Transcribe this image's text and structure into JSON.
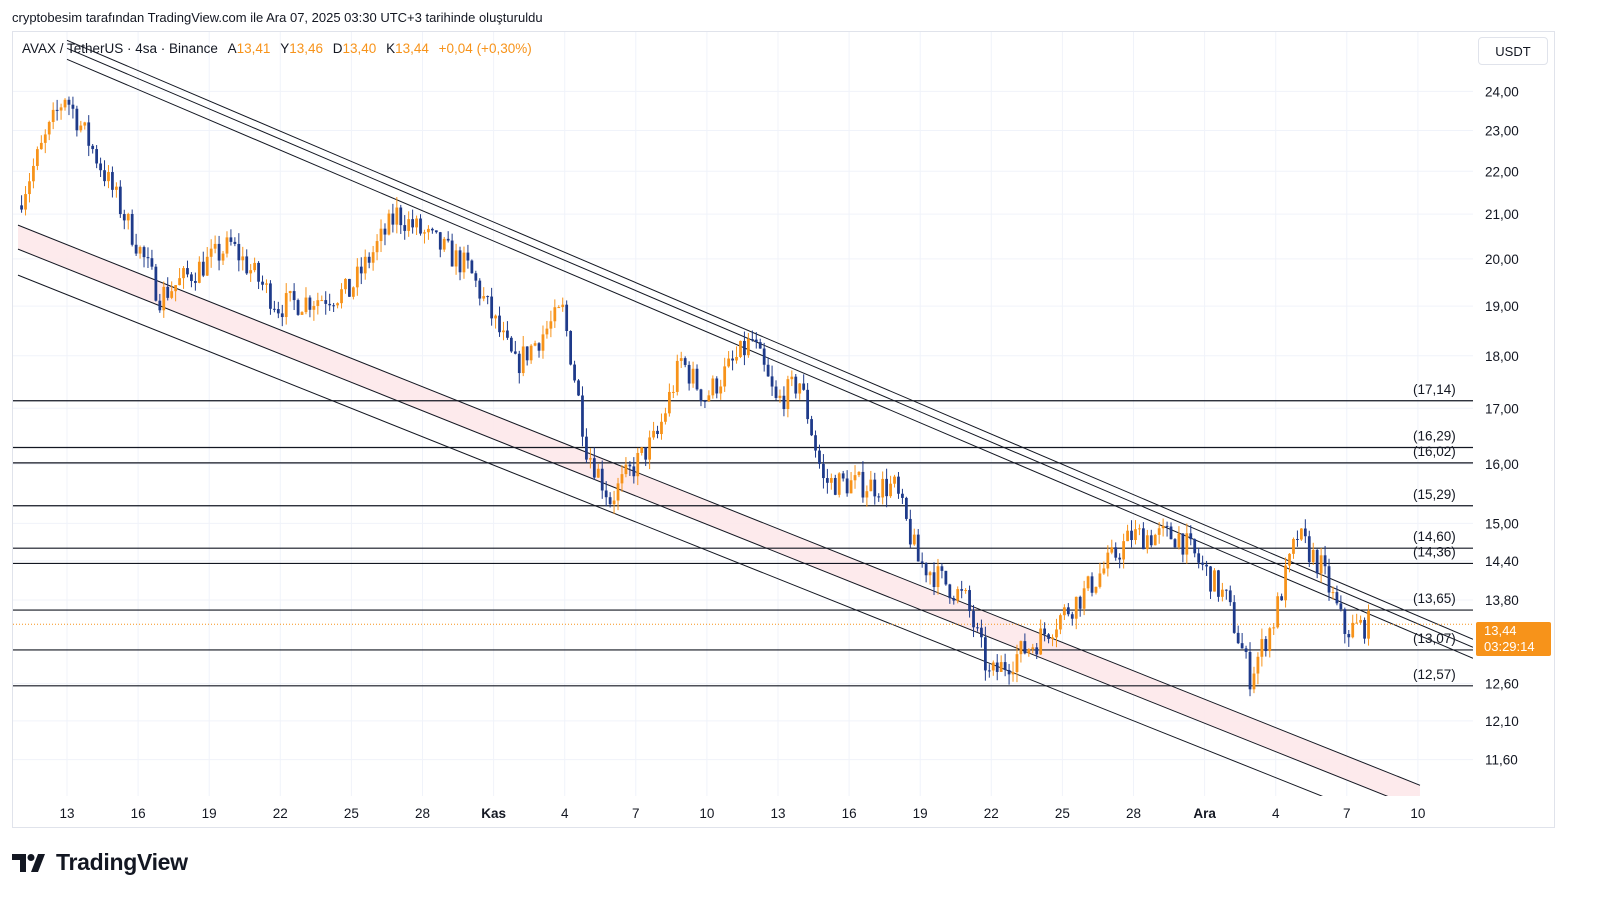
{
  "header": {
    "note": "cryptobesim tarafından TradingView.com ile Ara 07, 2025 03:30 UTC+3 tarihinde oluşturuldu"
  },
  "legend": {
    "symbol": "AVAX / TetherUS · 4sa · Binance",
    "open_label": "A",
    "open": "13,41",
    "high_label": "Y",
    "high": "13,46",
    "low_label": "D",
    "low": "13,40",
    "close_label": "K",
    "close": "13,44",
    "change": "+0,04 (+0,30%)"
  },
  "toolbar": {
    "currency": "USDT"
  },
  "brand": {
    "name": "TradingView"
  },
  "colors": {
    "up": "#f7931a",
    "down": "#1e3a8a",
    "line": "#131722",
    "channel_fill": "#fde8ea",
    "grid": "#f0f3fa",
    "axis_text": "#131722"
  },
  "chart_data": {
    "type": "candlestick",
    "title": "AVAX / TetherUS · 4sa · Binance",
    "ylim": [
      11.15,
      25.6
    ],
    "scale": "log",
    "y_ticks": [
      "24,00",
      "23,00",
      "22,00",
      "21,00",
      "20,00",
      "19,00",
      "18,00",
      "17,00",
      "16,00",
      "15,00",
      "14,40",
      "13,80",
      "12,60",
      "12,10",
      "11,60"
    ],
    "x_ticks": [
      {
        "label": "13",
        "bold": false
      },
      {
        "label": "16",
        "bold": false
      },
      {
        "label": "19",
        "bold": false
      },
      {
        "label": "22",
        "bold": false
      },
      {
        "label": "25",
        "bold": false
      },
      {
        "label": "28",
        "bold": false
      },
      {
        "label": "Kas",
        "bold": true
      },
      {
        "label": "4",
        "bold": false
      },
      {
        "label": "7",
        "bold": false
      },
      {
        "label": "10",
        "bold": false
      },
      {
        "label": "13",
        "bold": false
      },
      {
        "label": "16",
        "bold": false
      },
      {
        "label": "19",
        "bold": false
      },
      {
        "label": "22",
        "bold": false
      },
      {
        "label": "25",
        "bold": false
      },
      {
        "label": "28",
        "bold": false
      },
      {
        "label": "Ara",
        "bold": true
      },
      {
        "label": "4",
        "bold": false
      },
      {
        "label": "7",
        "bold": false
      },
      {
        "label": "10",
        "bold": false
      }
    ],
    "horizontal_levels": [
      {
        "value": 17.14,
        "label": "(17,14)"
      },
      {
        "value": 16.29,
        "label": "(16,29)"
      },
      {
        "value": 16.02,
        "label": "(16,02)"
      },
      {
        "value": 15.29,
        "label": "(15,29)"
      },
      {
        "value": 14.6,
        "label": "(14,60)"
      },
      {
        "value": 14.36,
        "label": "(14,36)"
      },
      {
        "value": 13.65,
        "label": "(13,65)"
      },
      {
        "value": 13.07,
        "label": "(13,07)"
      },
      {
        "value": 12.57,
        "label": "(12,57)"
      }
    ],
    "current_price": {
      "value": 13.44,
      "label": "13,44",
      "countdown": "03:29:14"
    },
    "descending_channel_upper": [
      {
        "x": "Oct 13",
        "y": 25.15
      },
      {
        "x": "Dec 10",
        "y": 13.3
      }
    ],
    "descending_channel_lower": [
      {
        "x": "Oct 11",
        "y": 20.2
      },
      {
        "x": "Dec 9",
        "y": 11.0
      }
    ],
    "anchor_points": [
      {
        "x": "Oct 11",
        "close": 21.2
      },
      {
        "x": "Oct 13",
        "close": 23.9
      },
      {
        "x": "Oct 17",
        "close": 19.2
      },
      {
        "x": "Oct 20",
        "close": 20.3
      },
      {
        "x": "Oct 22",
        "close": 19.0
      },
      {
        "x": "Oct 25",
        "close": 19.3
      },
      {
        "x": "Oct 27",
        "close": 21.0
      },
      {
        "x": "Oct 30",
        "close": 19.8
      },
      {
        "x": "Nov 1",
        "close": 17.8
      },
      {
        "x": "Nov 3",
        "close": 18.9
      },
      {
        "x": "Nov 4",
        "close": 16.3
      },
      {
        "x": "Nov 5",
        "close": 15.4
      },
      {
        "x": "Nov 7",
        "close": 16.5
      },
      {
        "x": "Nov 8",
        "close": 17.9
      },
      {
        "x": "Nov 9",
        "close": 17.2
      },
      {
        "x": "Nov 11",
        "close": 18.3
      },
      {
        "x": "Nov 12",
        "close": 17.1
      },
      {
        "x": "Nov 13",
        "close": 17.5
      },
      {
        "x": "Nov 14",
        "close": 15.7
      },
      {
        "x": "Nov 17",
        "close": 15.6
      },
      {
        "x": "Nov 18",
        "close": 14.4
      },
      {
        "x": "Nov 20",
        "close": 13.8
      },
      {
        "x": "Nov 21",
        "close": 12.7
      },
      {
        "x": "Nov 23",
        "close": 13.2
      },
      {
        "x": "Nov 25",
        "close": 13.9
      },
      {
        "x": "Nov 27",
        "close": 14.8
      },
      {
        "x": "Nov 29",
        "close": 14.8
      },
      {
        "x": "Dec 1",
        "close": 13.8
      },
      {
        "x": "Dec 2",
        "close": 12.7
      },
      {
        "x": "Dec 3",
        "close": 13.5
      },
      {
        "x": "Dec 4",
        "close": 14.8
      },
      {
        "x": "Dec 5",
        "close": 14.3
      },
      {
        "x": "Dec 6",
        "close": 13.35
      },
      {
        "x": "Dec 7",
        "close": 13.44
      }
    ]
  }
}
